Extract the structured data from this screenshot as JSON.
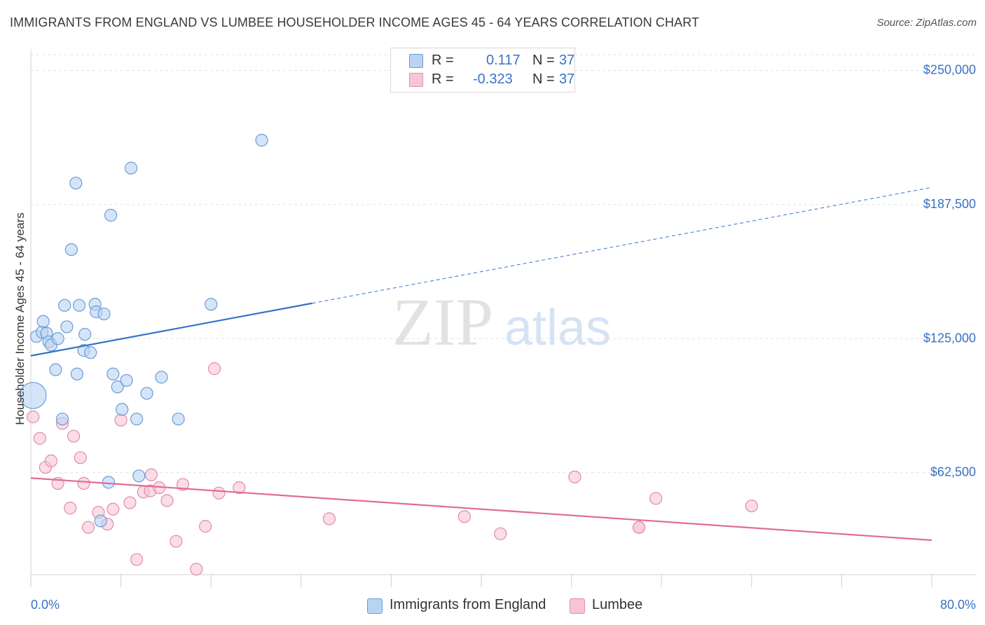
{
  "header": {
    "title": "IMMIGRANTS FROM ENGLAND VS LUMBEE HOUSEHOLDER INCOME AGES 45 - 64 YEARS CORRELATION CHART",
    "source": "Source: ZipAtlas.com"
  },
  "watermark": {
    "zip": "ZIP",
    "atlas": "atlas"
  },
  "legend": {
    "r_label": "R =",
    "n_label": "N =",
    "rows": [
      {
        "r": "0.117",
        "n": "37"
      },
      {
        "r": "-0.323",
        "n": "37"
      }
    ]
  },
  "colors": {
    "blue_fill": "#b9d3f3",
    "blue_stroke": "#6d9bd6",
    "blue_line": "#3474c8",
    "pink_fill": "#f7c6d6",
    "pink_stroke": "#e58aa8",
    "pink_line": "#e06b96",
    "grid": "#e3e3e3",
    "tick_label": "#3a72c4"
  },
  "chart_data": {
    "type": "scatter",
    "title": "IMMIGRANTS FROM ENGLAND VS LUMBEE HOUSEHOLDER INCOME AGES 45 - 64 YEARS CORRELATION CHART",
    "xlabel": "",
    "ylabel": "Householder Income Ages 45 - 64 years",
    "xlim": [
      0,
      80
    ],
    "ylim": [
      15000,
      260000
    ],
    "x_tick_labels": [
      "0.0%",
      "80.0%"
    ],
    "y_ticks": [
      62500,
      125000,
      187500,
      250000
    ],
    "y_tick_labels": [
      "$62,500",
      "$125,000",
      "$187,500",
      "$250,000"
    ],
    "grid": true,
    "legend_position": "bottom",
    "series": [
      {
        "name": "Immigrants from England",
        "color": "blue",
        "r": 0.117,
        "n": 37,
        "trend": {
          "x0": 0,
          "y0": 117000,
          "x1": 25,
          "y1": 141500,
          "x_end": 80,
          "y_end": 195500
        },
        "points": [
          {
            "x": 0.5,
            "y": 126000,
            "s": 1
          },
          {
            "x": 1.0,
            "y": 128000,
            "s": 1
          },
          {
            "x": 1.1,
            "y": 133000,
            "s": 1
          },
          {
            "x": 1.4,
            "y": 127500,
            "s": 1
          },
          {
            "x": 1.6,
            "y": 123500,
            "s": 1
          },
          {
            "x": 1.8,
            "y": 122000,
            "s": 1
          },
          {
            "x": 2.2,
            "y": 110500,
            "s": 1
          },
          {
            "x": 2.4,
            "y": 125000,
            "s": 1
          },
          {
            "x": 2.8,
            "y": 87500,
            "s": 1
          },
          {
            "x": 3.0,
            "y": 140500,
            "s": 1
          },
          {
            "x": 3.2,
            "y": 130500,
            "s": 1
          },
          {
            "x": 4.0,
            "y": 197500,
            "s": 1
          },
          {
            "x": 4.1,
            "y": 108500,
            "s": 1
          },
          {
            "x": 4.3,
            "y": 140500,
            "s": 1
          },
          {
            "x": 4.8,
            "y": 127000,
            "s": 1
          },
          {
            "x": 4.7,
            "y": 119500,
            "s": 1
          },
          {
            "x": 5.3,
            "y": 118500,
            "s": 1
          },
          {
            "x": 3.6,
            "y": 166500,
            "s": 1
          },
          {
            "x": 5.7,
            "y": 141000,
            "s": 1
          },
          {
            "x": 5.8,
            "y": 137500,
            "s": 1
          },
          {
            "x": 6.5,
            "y": 136500,
            "s": 1
          },
          {
            "x": 6.9,
            "y": 58000,
            "s": 1
          },
          {
            "x": 7.1,
            "y": 182500,
            "s": 1
          },
          {
            "x": 7.3,
            "y": 108500,
            "s": 1
          },
          {
            "x": 7.7,
            "y": 102500,
            "s": 1
          },
          {
            "x": 8.1,
            "y": 92000,
            "s": 1
          },
          {
            "x": 8.5,
            "y": 105500,
            "s": 1
          },
          {
            "x": 8.9,
            "y": 204500,
            "s": 1
          },
          {
            "x": 9.4,
            "y": 87500,
            "s": 1
          },
          {
            "x": 9.6,
            "y": 61000,
            "s": 1
          },
          {
            "x": 10.3,
            "y": 99500,
            "s": 1
          },
          {
            "x": 11.6,
            "y": 107000,
            "s": 1
          },
          {
            "x": 13.1,
            "y": 87500,
            "s": 1
          },
          {
            "x": 16.0,
            "y": 141000,
            "s": 1
          },
          {
            "x": 20.5,
            "y": 217500,
            "s": 1
          },
          {
            "x": 6.2,
            "y": 40000,
            "s": 1
          },
          {
            "x": 0.2,
            "y": 98500,
            "s": 2.2
          }
        ]
      },
      {
        "name": "Lumbee",
        "color": "pink",
        "r": -0.323,
        "n": 37,
        "trend": {
          "x0": 0,
          "y0": 60000,
          "x1": 80,
          "y1": 31000
        },
        "points": [
          {
            "x": 0.2,
            "y": 88500,
            "s": 1
          },
          {
            "x": 0.8,
            "y": 78500,
            "s": 1
          },
          {
            "x": 1.3,
            "y": 65000,
            "s": 1
          },
          {
            "x": 1.8,
            "y": 68000,
            "s": 1
          },
          {
            "x": 2.4,
            "y": 57500,
            "s": 1
          },
          {
            "x": 2.8,
            "y": 85500,
            "s": 1
          },
          {
            "x": 3.5,
            "y": 46000,
            "s": 1
          },
          {
            "x": 3.8,
            "y": 79500,
            "s": 1
          },
          {
            "x": 4.4,
            "y": 69500,
            "s": 1
          },
          {
            "x": 4.7,
            "y": 57500,
            "s": 1
          },
          {
            "x": 5.1,
            "y": 37000,
            "s": 1
          },
          {
            "x": 6.0,
            "y": 44000,
            "s": 1
          },
          {
            "x": 6.8,
            "y": 38500,
            "s": 1
          },
          {
            "x": 7.3,
            "y": 45500,
            "s": 1
          },
          {
            "x": 8.0,
            "y": 87000,
            "s": 1
          },
          {
            "x": 8.8,
            "y": 48500,
            "s": 1
          },
          {
            "x": 9.4,
            "y": 22000,
            "s": 1
          },
          {
            "x": 10.0,
            "y": 53500,
            "s": 1
          },
          {
            "x": 10.6,
            "y": 54000,
            "s": 1
          },
          {
            "x": 10.7,
            "y": 61500,
            "s": 1
          },
          {
            "x": 11.4,
            "y": 55500,
            "s": 1
          },
          {
            "x": 12.1,
            "y": 49500,
            "s": 1
          },
          {
            "x": 12.9,
            "y": 30500,
            "s": 1
          },
          {
            "x": 13.5,
            "y": 57000,
            "s": 1
          },
          {
            "x": 14.7,
            "y": 17500,
            "s": 1
          },
          {
            "x": 15.5,
            "y": 37500,
            "s": 1
          },
          {
            "x": 16.3,
            "y": 111000,
            "s": 1
          },
          {
            "x": 16.7,
            "y": 53000,
            "s": 1
          },
          {
            "x": 18.5,
            "y": 55500,
            "s": 1
          },
          {
            "x": 26.5,
            "y": 41000,
            "s": 1
          },
          {
            "x": 38.5,
            "y": 42000,
            "s": 1
          },
          {
            "x": 41.7,
            "y": 34000,
            "s": 1
          },
          {
            "x": 48.3,
            "y": 60500,
            "s": 1
          },
          {
            "x": 54.0,
            "y": 37000,
            "s": 1
          },
          {
            "x": 54.0,
            "y": 37000,
            "s": 1
          },
          {
            "x": 55.5,
            "y": 50500,
            "s": 1
          },
          {
            "x": 64.0,
            "y": 47000,
            "s": 1
          }
        ]
      }
    ]
  }
}
